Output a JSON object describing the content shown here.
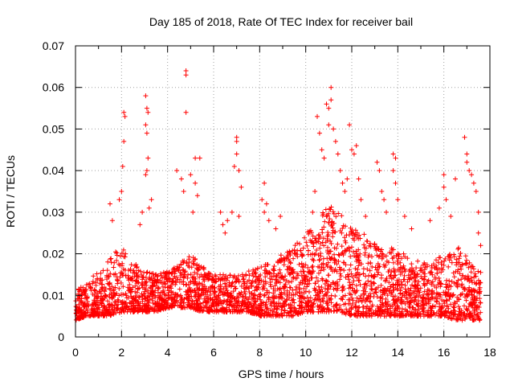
{
  "chart_data": {
    "type": "scatter",
    "title": "Day 185 of 2018, Rate Of TEC Index for receiver bail",
    "xlabel": "GPS time / hours",
    "ylabel": "ROTI / TECUs",
    "xlim": [
      0,
      18
    ],
    "ylim": [
      0,
      0.07
    ],
    "x_ticks": [
      0,
      2,
      4,
      6,
      8,
      10,
      12,
      14,
      16,
      18
    ],
    "x_tick_labels": [
      "0",
      "2",
      "4",
      "6",
      "8",
      "10",
      "12",
      "14",
      "16",
      "18"
    ],
    "y_ticks": [
      0,
      0.01,
      0.02,
      0.03,
      0.04,
      0.05,
      0.06,
      0.07
    ],
    "y_tick_labels": [
      "0",
      "0.01",
      "0.02",
      "0.03",
      "0.04",
      "0.05",
      "0.06",
      "0.07"
    ],
    "grid": true,
    "marker": "plus",
    "series_color": "#ff0000",
    "x_range_of_data": [
      0.0,
      17.6
    ],
    "envelope_note": "dense cloud of ROTI samples; main band 0.004-0.02 TECU, peaks up to ~0.064 near 4.8 h",
    "series": [
      {
        "name": "ROTI",
        "points": [
          [
            2.1,
            0.054
          ],
          [
            2.15,
            0.053
          ],
          [
            2.1,
            0.047
          ],
          [
            2.05,
            0.041
          ],
          [
            2.0,
            0.035
          ],
          [
            1.9,
            0.033
          ],
          [
            1.5,
            0.032
          ],
          [
            1.6,
            0.028
          ],
          [
            3.05,
            0.058
          ],
          [
            3.1,
            0.055
          ],
          [
            3.15,
            0.054
          ],
          [
            3.05,
            0.051
          ],
          [
            3.1,
            0.049
          ],
          [
            3.15,
            0.043
          ],
          [
            3.1,
            0.04
          ],
          [
            3.05,
            0.039
          ],
          [
            3.3,
            0.033
          ],
          [
            3.2,
            0.031
          ],
          [
            2.9,
            0.03
          ],
          [
            2.8,
            0.027
          ],
          [
            4.8,
            0.064
          ],
          [
            4.8,
            0.063
          ],
          [
            4.8,
            0.054
          ],
          [
            4.4,
            0.04
          ],
          [
            4.6,
            0.038
          ],
          [
            4.7,
            0.035
          ],
          [
            5.0,
            0.039
          ],
          [
            5.2,
            0.043
          ],
          [
            5.4,
            0.043
          ],
          [
            5.2,
            0.037
          ],
          [
            5.3,
            0.034
          ],
          [
            5.1,
            0.03
          ],
          [
            6.3,
            0.03
          ],
          [
            6.4,
            0.027
          ],
          [
            6.6,
            0.028
          ],
          [
            6.5,
            0.025
          ],
          [
            7.0,
            0.048
          ],
          [
            7.0,
            0.047
          ],
          [
            7.0,
            0.044
          ],
          [
            6.9,
            0.041
          ],
          [
            7.1,
            0.04
          ],
          [
            6.8,
            0.03
          ],
          [
            7.1,
            0.029
          ],
          [
            7.2,
            0.036
          ],
          [
            8.2,
            0.037
          ],
          [
            8.1,
            0.033
          ],
          [
            8.3,
            0.032
          ],
          [
            8.2,
            0.03
          ],
          [
            8.4,
            0.028
          ],
          [
            8.7,
            0.026
          ],
          [
            8.9,
            0.029
          ],
          [
            10.3,
            0.03
          ],
          [
            10.4,
            0.035
          ],
          [
            10.5,
            0.053
          ],
          [
            10.6,
            0.049
          ],
          [
            10.7,
            0.045
          ],
          [
            10.8,
            0.043
          ],
          [
            10.9,
            0.056
          ],
          [
            11.0,
            0.055
          ],
          [
            11.0,
            0.051
          ],
          [
            11.1,
            0.06
          ],
          [
            11.1,
            0.057
          ],
          [
            11.2,
            0.05
          ],
          [
            11.3,
            0.047
          ],
          [
            11.4,
            0.044
          ],
          [
            11.5,
            0.04
          ],
          [
            11.6,
            0.037
          ],
          [
            11.7,
            0.035
          ],
          [
            11.8,
            0.038
          ],
          [
            11.9,
            0.051
          ],
          [
            12.0,
            0.045
          ],
          [
            12.1,
            0.044
          ],
          [
            12.2,
            0.046
          ],
          [
            12.3,
            0.038
          ],
          [
            12.4,
            0.033
          ],
          [
            12.6,
            0.029
          ],
          [
            13.1,
            0.042
          ],
          [
            13.2,
            0.04
          ],
          [
            13.3,
            0.035
          ],
          [
            13.4,
            0.033
          ],
          [
            13.5,
            0.03
          ],
          [
            13.8,
            0.044
          ],
          [
            13.9,
            0.043
          ],
          [
            13.8,
            0.04
          ],
          [
            13.9,
            0.037
          ],
          [
            14.0,
            0.033
          ],
          [
            14.3,
            0.029
          ],
          [
            14.6,
            0.026
          ],
          [
            15.4,
            0.028
          ],
          [
            15.8,
            0.031
          ],
          [
            16.0,
            0.039
          ],
          [
            16.0,
            0.036
          ],
          [
            16.1,
            0.033
          ],
          [
            16.3,
            0.029
          ],
          [
            16.5,
            0.038
          ],
          [
            16.9,
            0.048
          ],
          [
            17.0,
            0.044
          ],
          [
            17.0,
            0.042
          ],
          [
            17.1,
            0.04
          ],
          [
            17.2,
            0.039
          ],
          [
            17.3,
            0.037
          ],
          [
            17.4,
            0.035
          ],
          [
            17.5,
            0.03
          ],
          [
            17.5,
            0.025
          ],
          [
            17.6,
            0.022
          ]
        ]
      }
    ],
    "band_profile": {
      "description": "approximate lower/upper bound of the dense band of samples (TECU) vs GPS time (hours)",
      "x": [
        0.0,
        0.5,
        1.0,
        1.5,
        2.0,
        2.5,
        3.0,
        3.5,
        4.0,
        4.5,
        5.0,
        5.5,
        6.0,
        6.5,
        7.0,
        7.5,
        8.0,
        8.5,
        9.0,
        9.5,
        10.0,
        10.5,
        11.0,
        11.5,
        12.0,
        12.5,
        13.0,
        13.5,
        14.0,
        14.5,
        15.0,
        15.5,
        16.0,
        16.5,
        17.0,
        17.5
      ],
      "low": [
        0.004,
        0.005,
        0.005,
        0.005,
        0.006,
        0.006,
        0.006,
        0.006,
        0.007,
        0.007,
        0.007,
        0.006,
        0.006,
        0.006,
        0.006,
        0.006,
        0.005,
        0.005,
        0.005,
        0.005,
        0.006,
        0.006,
        0.006,
        0.006,
        0.005,
        0.005,
        0.005,
        0.005,
        0.005,
        0.005,
        0.005,
        0.005,
        0.005,
        0.004,
        0.004,
        0.004
      ],
      "high": [
        0.011,
        0.013,
        0.016,
        0.019,
        0.022,
        0.018,
        0.016,
        0.015,
        0.016,
        0.018,
        0.02,
        0.017,
        0.015,
        0.015,
        0.015,
        0.016,
        0.017,
        0.018,
        0.02,
        0.022,
        0.025,
        0.028,
        0.032,
        0.03,
        0.027,
        0.025,
        0.023,
        0.022,
        0.021,
        0.019,
        0.018,
        0.018,
        0.02,
        0.022,
        0.02,
        0.016
      ]
    },
    "point_density_per_hour": 180,
    "random_seed": 185
  }
}
